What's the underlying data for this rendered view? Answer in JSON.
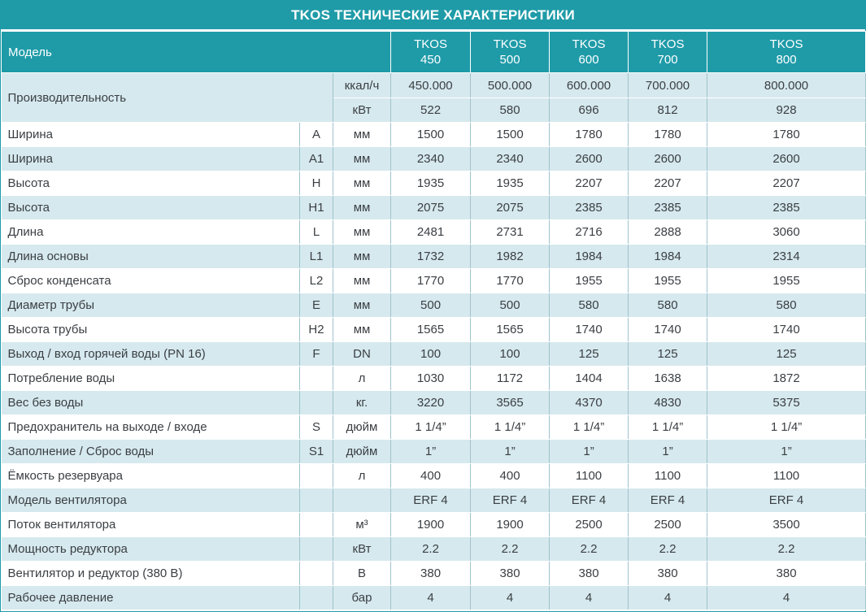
{
  "title": "TKOS ТЕХНИЧЕСКИЕ ХАРАКТЕРИСТИКИ",
  "header": {
    "label": "Модель",
    "models": [
      {
        "line1": "TKOS",
        "line2": "450"
      },
      {
        "line1": "TKOS",
        "line2": "500"
      },
      {
        "line1": "TKOS",
        "line2": "600"
      },
      {
        "line1": "TKOS",
        "line2": "700"
      },
      {
        "line1": "TKOS",
        "line2": "800"
      }
    ]
  },
  "performance": {
    "label": "Производительность",
    "rows": [
      {
        "unit": "ккал/ч",
        "values": [
          "450.000",
          "500.000",
          "600.000",
          "700.000",
          "800.000"
        ]
      },
      {
        "unit": "кВт",
        "values": [
          "522",
          "580",
          "696",
          "812",
          "928"
        ]
      }
    ]
  },
  "rows": [
    {
      "label": "Ширина",
      "code": "A",
      "unit": "мм",
      "values": [
        "1500",
        "1500",
        "1780",
        "1780",
        "1780"
      ]
    },
    {
      "label": "Ширина",
      "code": "A1",
      "unit": "мм",
      "values": [
        "2340",
        "2340",
        "2600",
        "2600",
        "2600"
      ]
    },
    {
      "label": "Высота",
      "code": "H",
      "unit": "мм",
      "values": [
        "1935",
        "1935",
        "2207",
        "2207",
        "2207"
      ]
    },
    {
      "label": "Высота",
      "code": "H1",
      "unit": "мм",
      "values": [
        "2075",
        "2075",
        "2385",
        "2385",
        "2385"
      ]
    },
    {
      "label": "Длина",
      "code": "L",
      "unit": "мм",
      "values": [
        "2481",
        "2731",
        "2716",
        "2888",
        "3060"
      ]
    },
    {
      "label": "Длина основы",
      "code": "L1",
      "unit": "мм",
      "values": [
        "1732",
        "1982",
        "1984",
        "1984",
        "2314"
      ]
    },
    {
      "label": "Сброс конденсата",
      "code": "L2",
      "unit": "мм",
      "values": [
        "1770",
        "1770",
        "1955",
        "1955",
        "1955"
      ]
    },
    {
      "label": "Диаметр трубы",
      "code": "E",
      "unit": "мм",
      "values": [
        "500",
        "500",
        "580",
        "580",
        "580"
      ]
    },
    {
      "label": "Высота трубы",
      "code": "H2",
      "unit": "мм",
      "values": [
        "1565",
        "1565",
        "1740",
        "1740",
        "1740"
      ]
    },
    {
      "label": "Выход / вход горячей воды (PN 16)",
      "code": "F",
      "unit": "DN",
      "values": [
        "100",
        "100",
        "125",
        "125",
        "125"
      ]
    },
    {
      "label": "Потребление воды",
      "code": "",
      "unit": "л",
      "values": [
        "1030",
        "1172",
        "1404",
        "1638",
        "1872"
      ]
    },
    {
      "label": "Вес без воды",
      "code": "",
      "unit": "кг.",
      "values": [
        "3220",
        "3565",
        "4370",
        "4830",
        "5375"
      ]
    },
    {
      "label": "Предохранитель на выходе / входе",
      "code": "S",
      "unit": "дюйм",
      "values": [
        "1 1/4”",
        "1 1/4”",
        "1 1/4”",
        "1 1/4”",
        "1 1/4”"
      ]
    },
    {
      "label": "Заполнение / Сброс воды",
      "code": "S1",
      "unit": "дюйм",
      "values": [
        "1”",
        "1”",
        "1”",
        "1”",
        "1”"
      ]
    },
    {
      "label": "Ёмкость резервуара",
      "code": "",
      "unit": "л",
      "values": [
        "400",
        "400",
        "1100",
        "1100",
        "1100"
      ]
    },
    {
      "label": "Модель вентилятора",
      "code": "",
      "unit": "",
      "values": [
        "ERF 4",
        "ERF 4",
        "ERF 4",
        "ERF 4",
        "ERF 4"
      ]
    },
    {
      "label": "Поток вентилятора",
      "code": "",
      "unit": "м³",
      "values": [
        "1900",
        "1900",
        "2500",
        "2500",
        "3500"
      ]
    },
    {
      "label": "Мощность редуктора",
      "code": "",
      "unit": "кВт",
      "values": [
        "2.2",
        "2.2",
        "2.2",
        "2.2",
        "2.2"
      ]
    },
    {
      "label": "Вентилятор и редуктор (380 В)",
      "code": "",
      "unit": "В",
      "values": [
        "380",
        "380",
        "380",
        "380",
        "380"
      ]
    },
    {
      "label": "Рабочее давление",
      "code": "",
      "unit": "бар",
      "values": [
        "4",
        "4",
        "4",
        "4",
        "4"
      ]
    }
  ],
  "colors": {
    "header_bg": "#1f9ba8",
    "band": "#d6e9ee",
    "text": "#3a3f43"
  }
}
